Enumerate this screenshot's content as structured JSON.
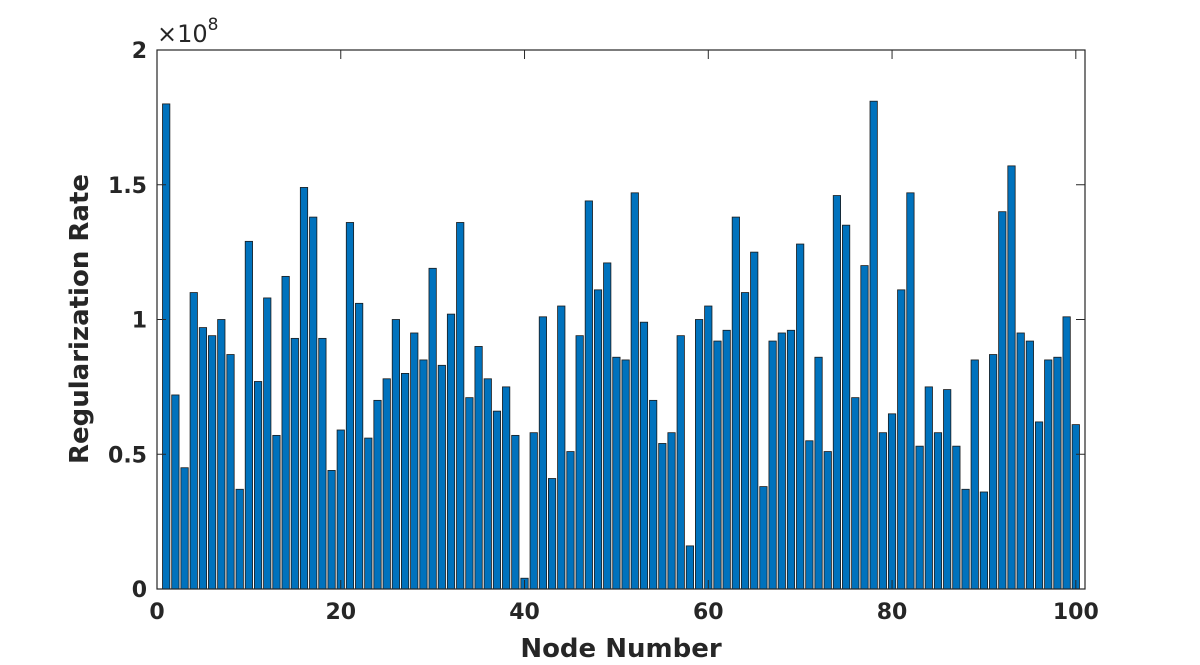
{
  "chart_data": {
    "type": "bar",
    "xlabel": "Node Number",
    "ylabel": "Regularization Rate",
    "exponent_prefix": "×10",
    "exponent_power": "8",
    "scale": 100000000,
    "xlim": [
      0,
      101
    ],
    "ylim": [
      0,
      2
    ],
    "xticks": [
      "0",
      "20",
      "40",
      "60",
      "80",
      "100"
    ],
    "xtick_values": [
      0,
      20,
      40,
      60,
      80,
      100
    ],
    "yticks": [
      "0",
      "0.5",
      "1",
      "1.5",
      "2"
    ],
    "ytick_values": [
      0,
      0.5,
      1,
      1.5,
      2
    ],
    "bar_color": "#0072BD",
    "edge_color": "#1a1a1a",
    "grid": false,
    "x": [
      1,
      2,
      3,
      4,
      5,
      6,
      7,
      8,
      9,
      10,
      11,
      12,
      13,
      14,
      15,
      16,
      17,
      18,
      19,
      20,
      21,
      22,
      23,
      24,
      25,
      26,
      27,
      28,
      29,
      30,
      31,
      32,
      33,
      34,
      35,
      36,
      37,
      38,
      39,
      40,
      41,
      42,
      43,
      44,
      45,
      46,
      47,
      48,
      49,
      50,
      51,
      52,
      53,
      54,
      55,
      56,
      57,
      58,
      59,
      60,
      61,
      62,
      63,
      64,
      65,
      66,
      67,
      68,
      69,
      70,
      71,
      72,
      73,
      74,
      75,
      76,
      77,
      78,
      79,
      80,
      81,
      82,
      83,
      84,
      85,
      86,
      87,
      88,
      89,
      90,
      91,
      92,
      93,
      94,
      95,
      96,
      97,
      98,
      99,
      100
    ],
    "values": [
      1.8,
      0.72,
      0.45,
      1.1,
      0.97,
      0.94,
      1.0,
      0.87,
      0.37,
      1.29,
      0.77,
      1.08,
      0.57,
      1.16,
      0.93,
      1.49,
      1.38,
      0.93,
      0.44,
      0.59,
      1.36,
      1.06,
      0.56,
      0.7,
      0.78,
      1.0,
      0.8,
      0.95,
      0.85,
      1.19,
      0.83,
      1.02,
      1.36,
      0.71,
      0.9,
      0.78,
      0.66,
      0.75,
      0.57,
      0.04,
      0.58,
      1.01,
      0.41,
      1.05,
      0.51,
      0.94,
      1.44,
      1.11,
      1.21,
      0.86,
      0.85,
      1.47,
      0.99,
      0.7,
      0.54,
      0.58,
      0.94,
      0.16,
      1.0,
      1.05,
      0.92,
      0.96,
      1.38,
      1.1,
      1.25,
      0.38,
      0.92,
      0.95,
      0.96,
      1.28,
      0.55,
      0.86,
      0.51,
      1.46,
      1.35,
      0.71,
      1.2,
      1.81,
      0.58,
      0.65,
      1.11,
      1.47,
      0.53,
      0.75,
      0.58,
      0.74,
      0.53,
      0.37,
      0.85,
      0.36,
      0.87,
      1.4,
      1.57,
      0.95,
      0.92,
      0.62,
      0.85,
      0.86,
      1.01,
      0.61
    ]
  }
}
